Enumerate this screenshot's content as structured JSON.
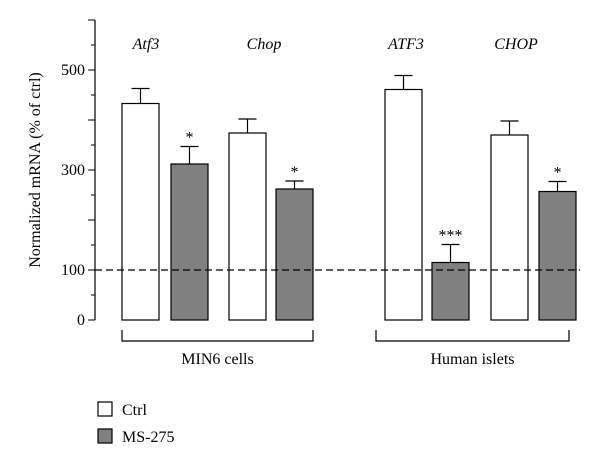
{
  "chart_data": {
    "type": "bar",
    "ylabel": "Normalized mRNA (% of ctrl)",
    "ylim": [
      0,
      600
    ],
    "yticks": [
      0,
      100,
      300,
      500
    ],
    "reference_line": 100,
    "groups": [
      {
        "label": "MIN6 cells",
        "genes": [
          {
            "name": "Atf3",
            "ctrl": 433,
            "ctrl_err": 30,
            "ms275": 312,
            "ms275_err": 35,
            "ms275_sig": "*"
          },
          {
            "name": "Chop",
            "ctrl": 374,
            "ctrl_err": 28,
            "ms275": 262,
            "ms275_err": 16,
            "ms275_sig": "*"
          }
        ]
      },
      {
        "label": "Human islets",
        "genes": [
          {
            "name": "ATF3",
            "ctrl": 461,
            "ctrl_err": 28,
            "ms275": 115,
            "ms275_err": 36,
            "ms275_sig": "***"
          },
          {
            "name": "CHOP",
            "ctrl": 370,
            "ctrl_err": 28,
            "ms275": 257,
            "ms275_err": 20,
            "ms275_sig": "*"
          }
        ]
      }
    ],
    "series": [
      {
        "name": "Ctrl",
        "color": "#ffffff"
      },
      {
        "name": "MS-275",
        "color": "#808080"
      }
    ],
    "legend_position": "bottom-left"
  }
}
